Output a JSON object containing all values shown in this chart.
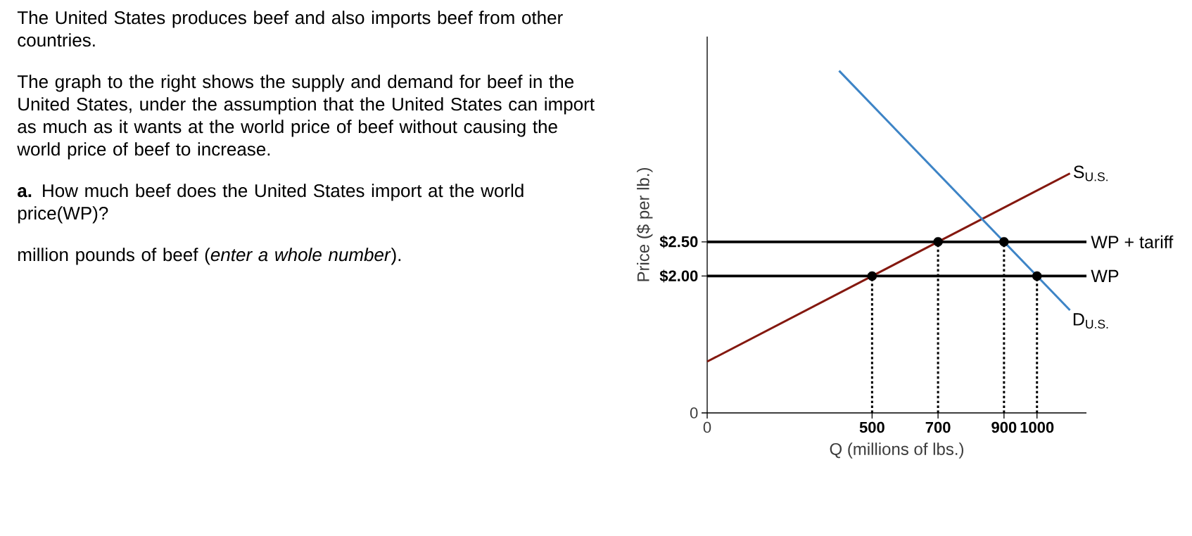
{
  "chart_data": {
    "type": "line",
    "xlabel": "Q (millions of lbs.)",
    "ylabel": "Price ($ per lb.)",
    "xlim": [
      0,
      1150
    ],
    "ylim": [
      0,
      5.5
    ],
    "xticks": [
      0,
      500,
      700,
      900,
      1000
    ],
    "yticks": [
      0,
      {
        "value": 2,
        "label": "$2.00"
      },
      {
        "value": 2.5,
        "label": "$2.50"
      }
    ],
    "series": [
      {
        "name": "S$_{U.S.}$",
        "color": "#84180f",
        "x": [
          0,
          1100
        ],
        "values": [
          0.75,
          3.5
        ]
      },
      {
        "name": "D$_{U.S.}$",
        "color": "#3d84c6",
        "x": [
          400,
          1100
        ],
        "values": [
          5,
          1.5
        ]
      },
      {
        "type": "line",
        "color": "#000000",
        "line_style": "dotted",
        "x": [
          500,
          500
        ],
        "values": [
          0,
          2
        ]
      },
      {
        "type": "line",
        "color": "#000000",
        "line_style": "dotted",
        "x": [
          700,
          700
        ],
        "values": [
          0,
          2.5
        ]
      },
      {
        "type": "line",
        "color": "#000000",
        "line_style": "dotted",
        "x": [
          900,
          900
        ],
        "values": [
          0,
          2.5
        ]
      },
      {
        "type": "line",
        "color": "#000000",
        "line_style": "dotted",
        "x": [
          1000,
          1000
        ],
        "values": [
          0,
          2
        ]
      },
      {
        "type": "scatter",
        "color": "#000000",
        "marker": "circle",
        "x": [
          500,
          700,
          900,
          1000
        ],
        "values": [
          2,
          2.5,
          2.5,
          2
        ]
      }
    ],
    "ref_lines": [
      {
        "axis": "y",
        "value": 2.5,
        "label": "WP + tariff",
        "color": "#000000"
      },
      {
        "axis": "y",
        "value": 2,
        "label": "WP",
        "color": "#000000"
      }
    ],
    "annotations": [
      "The United States produces beef and also imports beef from other countries.",
      "The graph to the right shows the supply and demand for beef in the United States, under the assumption that the United States can import as much as it wants at the world price of beef without causing the world price of beef to increase.",
      "**a.** How much beef does the United States import at the world price(WP)?",
      "million pounds of beef (*enter a whole number*)."
    ]
  }
}
